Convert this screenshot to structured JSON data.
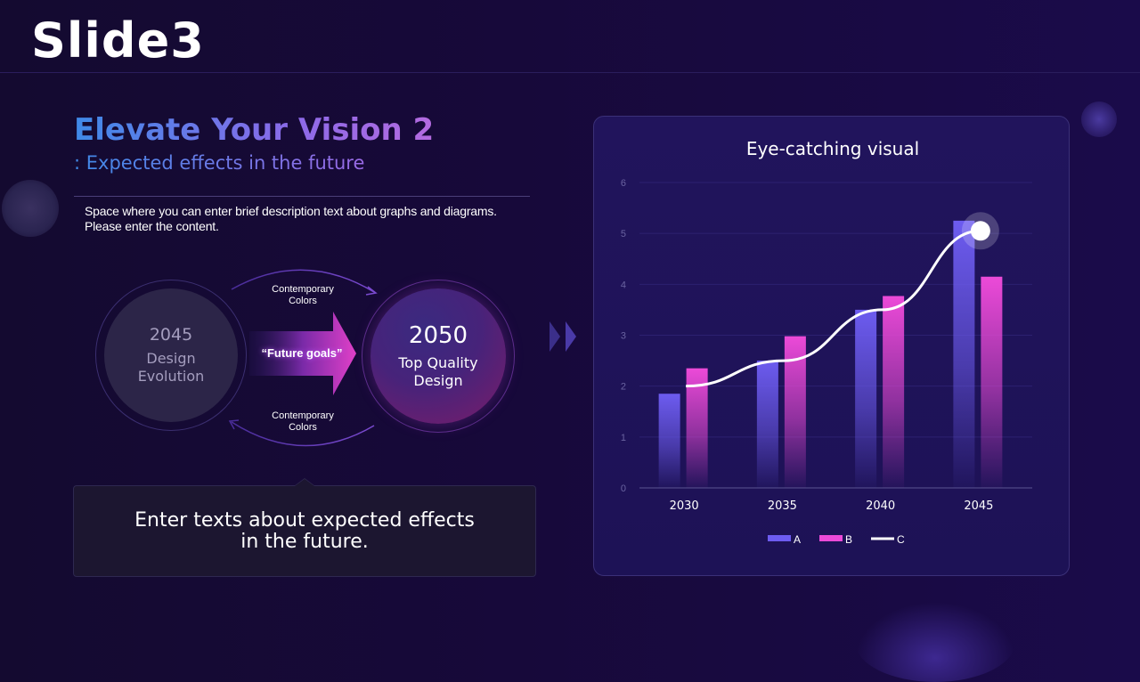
{
  "slide": {
    "title": "Slide3"
  },
  "left": {
    "heading": "Elevate Your Vision 2",
    "subheading": ": Expected effects in the future",
    "description": [
      "Space where you can enter brief description text about graphs and diagrams.",
      "Please enter the content."
    ],
    "diagram": {
      "left_circle": {
        "year": "2045",
        "lines": [
          "Design",
          "Evolution"
        ]
      },
      "right_circle": {
        "year": "2050",
        "lines": [
          "Top Quality",
          "Design"
        ]
      },
      "arrow_label": "“Future goals”",
      "top_arc_label": [
        "Contemporary",
        "Colors"
      ],
      "bottom_arc_label": [
        "Contemporary",
        "Colors"
      ]
    },
    "callout": [
      "Enter texts about expected effects",
      "in the future."
    ]
  },
  "chart_data": {
    "type": "bar",
    "title": "Eye-catching visual",
    "categories": [
      "2030",
      "2035",
      "2040",
      "2045"
    ],
    "ylim": [
      0,
      6
    ],
    "yticks": [
      0,
      1,
      2,
      3,
      4,
      5,
      6
    ],
    "series": [
      {
        "name": "A",
        "type": "bar",
        "values": [
          1.85,
          2.5,
          3.5,
          5.25
        ],
        "color": "#6d5cf0"
      },
      {
        "name": "B",
        "type": "bar",
        "values": [
          2.35,
          2.98,
          3.77,
          4.15
        ],
        "color": "#ec4ad8"
      },
      {
        "name": "C",
        "type": "line",
        "values": [
          2.0,
          2.5,
          3.5,
          5.05
        ],
        "color": "#ffffff"
      }
    ],
    "legend": "bottom-center",
    "grid": true
  }
}
